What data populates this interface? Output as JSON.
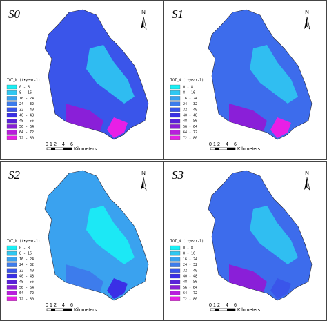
{
  "panels": [
    {
      "label": "S0"
    },
    {
      "label": "S1"
    },
    {
      "label": "S2"
    },
    {
      "label": "S3"
    }
  ],
  "legend": {
    "title": "TOT_N (t•year-1)",
    "items": [
      {
        "label": "0 - 8",
        "color": "#19f0f5"
      },
      {
        "label": "8 - 16",
        "color": "#2fc8f2"
      },
      {
        "label": "16 - 24",
        "color": "#3aa2ef"
      },
      {
        "label": "24 - 32",
        "color": "#3d7cec"
      },
      {
        "label": "32 - 40",
        "color": "#3a55ea"
      },
      {
        "label": "40 - 48",
        "color": "#3a2fe6"
      },
      {
        "label": "48 - 56",
        "color": "#5a22d8"
      },
      {
        "label": "56 - 64",
        "color": "#8a1fd8"
      },
      {
        "label": "64 - 72",
        "color": "#b81fdc"
      },
      {
        "label": "72 - 80",
        "color": "#e81fe6"
      }
    ]
  },
  "scale": {
    "ticks": [
      "0",
      "1",
      "2",
      "4",
      "6"
    ],
    "unit": "Kilometers"
  },
  "north": "N"
}
